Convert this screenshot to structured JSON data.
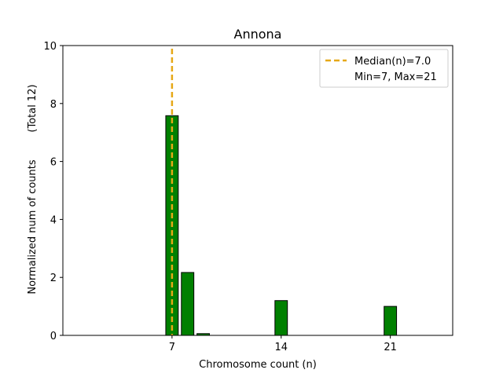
{
  "chart_data": {
    "type": "bar",
    "title": "Annona",
    "xlabel": "Chromosome count (n)",
    "ylabel": "Normalized num of counts",
    "ylabel_secondary": "(Total 12)",
    "xlim": [
      0,
      25
    ],
    "ylim": [
      0,
      10
    ],
    "xticks": [
      7,
      14,
      21
    ],
    "yticks": [
      0,
      2,
      4,
      6,
      8,
      10
    ],
    "bar_width": 0.8,
    "bar_color": "#008000",
    "bar_edge_color": "#000000",
    "bars": [
      {
        "x": 7,
        "value": 7.58
      },
      {
        "x": 8,
        "value": 2.17
      },
      {
        "x": 9,
        "value": 0.06
      },
      {
        "x": 14,
        "value": 1.2
      },
      {
        "x": 21,
        "value": 1.0
      }
    ],
    "median_line": {
      "x": 7.0,
      "color": "#e6a817",
      "style": "dashed"
    },
    "legend": {
      "position": "top-right",
      "entries": [
        {
          "label": "Median(n)=7.0",
          "marker": "dashed-line",
          "color": "#e6a817"
        },
        {
          "label": "Min=7, Max=21",
          "marker": "none"
        }
      ]
    }
  }
}
